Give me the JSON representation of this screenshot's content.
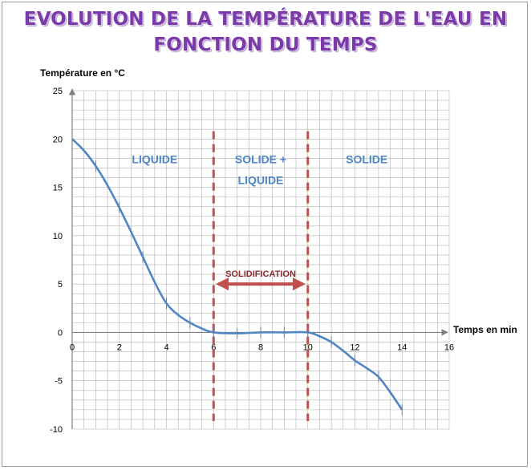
{
  "chart_data": {
    "type": "line",
    "title_lines": [
      "EVOLUTION DE LA TEMPÉRATURE DE L'EAU EN",
      "FONCTION DU TEMPS"
    ],
    "xlabel": "Temps en min",
    "ylabel": "Température en °C",
    "xlim": [
      0,
      16
    ],
    "ylim": [
      -10,
      25
    ],
    "x_ticks": [
      0,
      2,
      4,
      6,
      8,
      10,
      12,
      14,
      16
    ],
    "y_ticks": [
      -10,
      -5,
      0,
      5,
      10,
      15,
      20,
      25
    ],
    "grid": true,
    "x": [
      0,
      0.5,
      1,
      1.5,
      2,
      2.5,
      3,
      3.5,
      4,
      4.5,
      5,
      5.5,
      6,
      7,
      8,
      9,
      10,
      10.5,
      11,
      11.5,
      12,
      12.5,
      13,
      13.5,
      14
    ],
    "values": [
      20,
      18.8,
      17.2,
      15.2,
      12.9,
      10.4,
      7.8,
      5.2,
      3.0,
      1.8,
      1.0,
      0.4,
      0,
      -0.1,
      0,
      0,
      0,
      -0.4,
      -1.0,
      -1.9,
      -2.9,
      -3.7,
      -4.6,
      -6.2,
      -8
    ],
    "phase_boundaries": [
      6,
      10
    ],
    "regions": [
      {
        "lines": [
          "LIQUIDE"
        ],
        "x": 3.5,
        "y": 17.5
      },
      {
        "lines": [
          "SOLIDE +",
          "LIQUIDE"
        ],
        "x": 8,
        "y": 17.5
      },
      {
        "lines": [
          "SOLIDE"
        ],
        "x": 12.5,
        "y": 17.5
      }
    ],
    "annotation": {
      "text": "SOLIDIFICATION",
      "x_from": 6,
      "x_to": 10,
      "y": 5
    },
    "colors": {
      "line": "#4f86c6",
      "boundary": "#c0504d",
      "arrow": "#c0504d",
      "grid": "#b0b0b0"
    }
  }
}
